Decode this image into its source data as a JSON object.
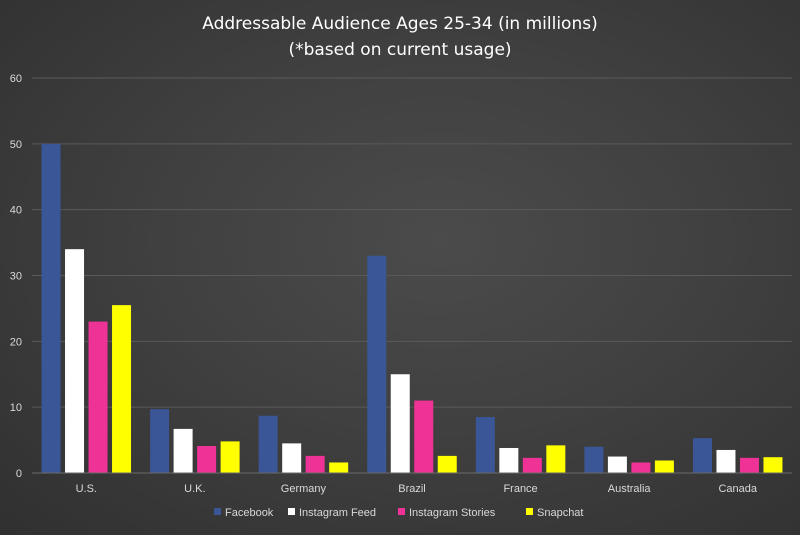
{
  "chart_data": {
    "type": "bar",
    "title": "Addressable Audience Ages 25-34 (in millions)",
    "subtitle": "(*based on current usage)",
    "xlabel": "",
    "ylabel": "",
    "ylim": [
      0,
      60
    ],
    "yticks": [
      0,
      10,
      20,
      30,
      40,
      50,
      60
    ],
    "grid": true,
    "legend_position": "bottom",
    "categories": [
      "U.S.",
      "U.K.",
      "Germany",
      "Brazil",
      "France",
      "Australia",
      "Canada"
    ],
    "series": [
      {
        "name": "Facebook",
        "color": "#3a5696",
        "values": [
          50,
          9.7,
          8.7,
          33,
          8.5,
          4,
          5.3
        ]
      },
      {
        "name": "Instagram Feed",
        "color": "#ffffff",
        "values": [
          34,
          6.7,
          4.5,
          15,
          3.8,
          2.5,
          3.5
        ]
      },
      {
        "name": "Instagram Stories",
        "color": "#ee3296",
        "values": [
          23,
          4.1,
          2.6,
          11,
          2.3,
          1.6,
          2.3
        ]
      },
      {
        "name": "Snapchat",
        "color": "#ffff00",
        "values": [
          25.5,
          4.8,
          1.6,
          2.6,
          4.2,
          1.9,
          2.4
        ]
      }
    ]
  }
}
